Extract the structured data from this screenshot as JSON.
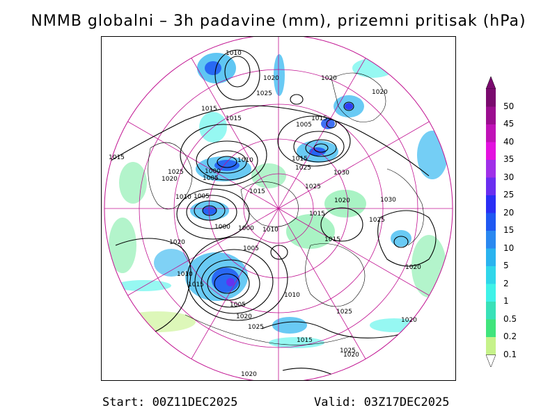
{
  "title": "NMMB globalni – 3h padavine (mm), prizemni pritisak (hPa)",
  "footer": {
    "start": "Start: 00Z11DEC2025",
    "valid": "Valid: 03Z17DEC2025"
  },
  "legend": {
    "levels": [
      {
        "label": "50",
        "color": "#7a0a6e"
      },
      {
        "label": "45",
        "color": "#9b0d8f"
      },
      {
        "label": "40",
        "color": "#c012b7"
      },
      {
        "label": "35",
        "color": "#e312df"
      },
      {
        "label": "30",
        "color": "#a030e8"
      },
      {
        "label": "25",
        "color": "#6a2ef0"
      },
      {
        "label": "20",
        "color": "#2a2ef5"
      },
      {
        "label": "15",
        "color": "#1f58f2"
      },
      {
        "label": "10",
        "color": "#2a88f0"
      },
      {
        "label": "5",
        "color": "#2ab3ef"
      },
      {
        "label": "2",
        "color": "#30d6ea"
      },
      {
        "label": "1",
        "color": "#3ff2e8"
      },
      {
        "label": "0.5",
        "color": "#39e1b8"
      },
      {
        "label": "0.2",
        "color": "#41e47c"
      },
      {
        "label": "0.1",
        "color": "#c6f28a"
      }
    ]
  },
  "isobar_labels": [
    "1010",
    "1020",
    "1020",
    "1025",
    "1020",
    "1015",
    "1015",
    "1005",
    "1015",
    "1015",
    "1025",
    "1020",
    "1005",
    "1010",
    "1000",
    "1015",
    "1025",
    "1030",
    "1015",
    "1025",
    "1020",
    "1005",
    "1010",
    "1030",
    "1015",
    "1025",
    "1000",
    "1000",
    "1010",
    "1015",
    "1020",
    "1005",
    "1010",
    "1010",
    "1015",
    "1020",
    "1005",
    "1020",
    "1025",
    "1025",
    "1020",
    "1015",
    "1020",
    "1020",
    "1025"
  ]
}
